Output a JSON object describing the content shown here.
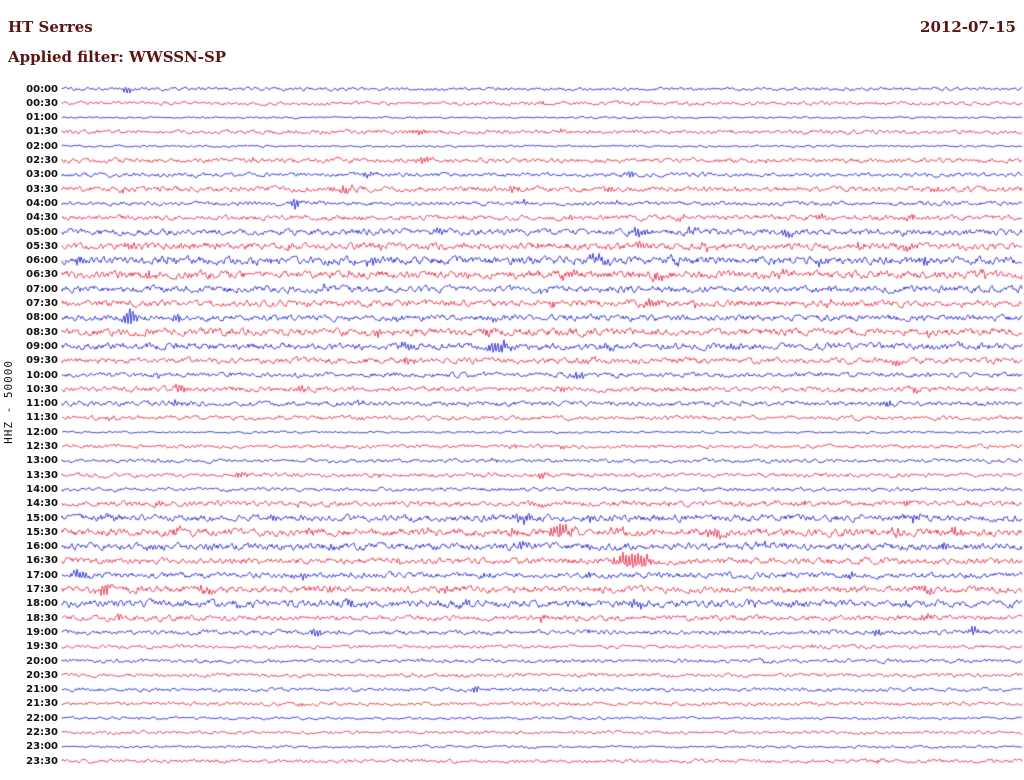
{
  "header": {
    "station": "HT Serres",
    "filter_label": "Applied filter: WWSSN-SP",
    "date": "2012-07-15"
  },
  "axis": {
    "ylabel": "HHZ - 50000"
  },
  "chart_data": {
    "type": "line",
    "title": "HT Serres",
    "subtitle": "Applied filter: WWSSN-SP",
    "date": "2012-07-15",
    "ylabel": "HHZ - 50000",
    "row_interval_minutes": 30,
    "legend_position": "none",
    "grid": false,
    "x_axis": "time of day, one trace row per 30 minutes",
    "series_description": "48 helicorder trace rows; a = relative background noise amplitude (px), e = event bursts as [position fraction 0-1, amplitude px, envelope width px]",
    "trace_colors": {
      "b": "#1616cc",
      "r": "#e3203c"
    },
    "rows": [
      {
        "t": "00:00",
        "c": "b",
        "a": 0.8,
        "e": [
          [
            0.068,
            3.5,
            4
          ]
        ]
      },
      {
        "t": "00:30",
        "c": "r",
        "a": 0.9,
        "e": [
          [
            0.5,
            1.5,
            3
          ]
        ]
      },
      {
        "t": "01:00",
        "c": "b",
        "a": 0.45,
        "e": []
      },
      {
        "t": "01:30",
        "c": "r",
        "a": 1.0,
        "e": [
          [
            0.373,
            4,
            5
          ],
          [
            0.52,
            2,
            3
          ]
        ]
      },
      {
        "t": "02:00",
        "c": "b",
        "a": 0.5,
        "e": []
      },
      {
        "t": "02:30",
        "c": "r",
        "a": 1.1,
        "e": [
          [
            0.378,
            4.5,
            5
          ],
          [
            0.2,
            2,
            3
          ],
          [
            0.73,
            2.5,
            3
          ]
        ]
      },
      {
        "t": "03:00",
        "c": "b",
        "a": 1.0,
        "e": [
          [
            0.32,
            3.5,
            4
          ],
          [
            0.59,
            3,
            4
          ],
          [
            0.8,
            2,
            3
          ]
        ]
      },
      {
        "t": "03:30",
        "c": "r",
        "a": 1.3,
        "e": [
          [
            0.066,
            3.5,
            4
          ],
          [
            0.295,
            4.5,
            6
          ],
          [
            0.47,
            3.5,
            4
          ],
          [
            0.57,
            3,
            4
          ],
          [
            0.91,
            3,
            4
          ]
        ]
      },
      {
        "t": "04:00",
        "c": "b",
        "a": 1.0,
        "e": [
          [
            0.243,
            8,
            3
          ],
          [
            0.48,
            2.5,
            3
          ],
          [
            0.58,
            2,
            3
          ]
        ]
      },
      {
        "t": "04:30",
        "c": "r",
        "a": 1.2,
        "e": [
          [
            0.42,
            2.5,
            3
          ],
          [
            0.53,
            3,
            4
          ],
          [
            0.645,
            3,
            4
          ],
          [
            0.79,
            2.5,
            3
          ],
          [
            0.885,
            3.5,
            4
          ]
        ]
      },
      {
        "t": "05:00",
        "c": "b",
        "a": 1.5,
        "e": [
          [
            0.39,
            3,
            4
          ],
          [
            0.6,
            4.5,
            6
          ],
          [
            0.655,
            4,
            5
          ],
          [
            0.755,
            4.5,
            5
          ],
          [
            0.88,
            3,
            4
          ]
        ]
      },
      {
        "t": "05:30",
        "c": "r",
        "a": 1.7,
        "e": [
          [
            0.07,
            3,
            4
          ],
          [
            0.24,
            3,
            4
          ],
          [
            0.33,
            3,
            4
          ],
          [
            0.5,
            3,
            4
          ],
          [
            0.6,
            3.5,
            4
          ],
          [
            0.67,
            3,
            4
          ],
          [
            0.83,
            3,
            4
          ],
          [
            0.878,
            4,
            5
          ]
        ]
      },
      {
        "t": "06:00",
        "c": "b",
        "a": 1.9,
        "e": [
          [
            0.02,
            4,
            5
          ],
          [
            0.11,
            3,
            4
          ],
          [
            0.21,
            3.5,
            5
          ],
          [
            0.32,
            4,
            5
          ],
          [
            0.56,
            5,
            7
          ],
          [
            0.64,
            3.5,
            4
          ],
          [
            0.79,
            3,
            4
          ],
          [
            0.9,
            3.5,
            4
          ]
        ]
      },
      {
        "t": "06:30",
        "c": "r",
        "a": 1.9,
        "e": [
          [
            0.09,
            4,
            5
          ],
          [
            0.3,
            3,
            4
          ],
          [
            0.53,
            5,
            7
          ],
          [
            0.62,
            4,
            5
          ],
          [
            0.75,
            3,
            4
          ],
          [
            0.96,
            4,
            4
          ]
        ]
      },
      {
        "t": "07:00",
        "c": "b",
        "a": 1.6,
        "e": [
          [
            0.27,
            2.5,
            4
          ],
          [
            0.5,
            2.5,
            4
          ],
          [
            0.8,
            2.5,
            4
          ]
        ]
      },
      {
        "t": "07:30",
        "c": "r",
        "a": 1.6,
        "e": [
          [
            0.51,
            4,
            5
          ],
          [
            0.615,
            5.5,
            7
          ],
          [
            0.66,
            3,
            4
          ],
          [
            0.8,
            3,
            4
          ]
        ]
      },
      {
        "t": "08:00",
        "c": "b",
        "a": 1.5,
        "e": [
          [
            0.071,
            11,
            4
          ],
          [
            0.12,
            4,
            4
          ],
          [
            0.35,
            3,
            4
          ],
          [
            0.45,
            3,
            4
          ]
        ]
      },
      {
        "t": "08:30",
        "c": "r",
        "a": 1.8,
        "e": [
          [
            0.33,
            4,
            5
          ],
          [
            0.44,
            3.5,
            4
          ],
          [
            0.62,
            3,
            4
          ],
          [
            0.9,
            3.5,
            4
          ]
        ]
      },
      {
        "t": "09:00",
        "c": "b",
        "a": 1.6,
        "e": [
          [
            0.36,
            4.5,
            5
          ],
          [
            0.455,
            6.5,
            8
          ],
          [
            0.57,
            3.5,
            4
          ],
          [
            0.7,
            3,
            4
          ]
        ]
      },
      {
        "t": "09:30",
        "c": "r",
        "a": 1.4,
        "e": [
          [
            0.36,
            4,
            5
          ],
          [
            0.55,
            3,
            4
          ],
          [
            0.87,
            3.5,
            4
          ]
        ]
      },
      {
        "t": "10:00",
        "c": "b",
        "a": 1.2,
        "e": [
          [
            0.1,
            2.5,
            3
          ],
          [
            0.54,
            4,
            5
          ]
        ]
      },
      {
        "t": "10:30",
        "c": "r",
        "a": 1.3,
        "e": [
          [
            0.123,
            4.5,
            5
          ],
          [
            0.25,
            3.5,
            4
          ],
          [
            0.52,
            3,
            4
          ],
          [
            0.89,
            3.5,
            4
          ]
        ]
      },
      {
        "t": "11:00",
        "c": "b",
        "a": 1.2,
        "e": [
          [
            0.117,
            4,
            4
          ],
          [
            0.31,
            2.5,
            3
          ],
          [
            0.86,
            3.5,
            4
          ]
        ]
      },
      {
        "t": "11:30",
        "c": "r",
        "a": 1.0,
        "e": [
          [
            0.05,
            2,
            3
          ],
          [
            0.31,
            2,
            3
          ]
        ]
      },
      {
        "t": "12:00",
        "c": "b",
        "a": 0.5,
        "e": []
      },
      {
        "t": "12:30",
        "c": "r",
        "a": 0.9,
        "e": [
          [
            0.47,
            2,
            3
          ],
          [
            0.52,
            2,
            3
          ]
        ]
      },
      {
        "t": "13:00",
        "c": "b",
        "a": 0.9,
        "e": [
          [
            0.45,
            2,
            3
          ]
        ]
      },
      {
        "t": "13:30",
        "c": "r",
        "a": 1.0,
        "e": [
          [
            0.185,
            4,
            5
          ],
          [
            0.33,
            2.5,
            3
          ],
          [
            0.5,
            3.5,
            4
          ]
        ]
      },
      {
        "t": "14:00",
        "c": "b",
        "a": 0.9,
        "e": [
          [
            0.67,
            2,
            3
          ]
        ]
      },
      {
        "t": "14:30",
        "c": "r",
        "a": 1.3,
        "e": [
          [
            0.1,
            2.5,
            3
          ],
          [
            0.25,
            2.5,
            3
          ],
          [
            0.5,
            2.5,
            3
          ],
          [
            0.63,
            2.5,
            3
          ],
          [
            0.77,
            3,
            4
          ],
          [
            0.88,
            2.5,
            3
          ]
        ]
      },
      {
        "t": "15:00",
        "c": "b",
        "a": 1.6,
        "e": [
          [
            0.05,
            3.5,
            4
          ],
          [
            0.22,
            3,
            4
          ],
          [
            0.48,
            5,
            6
          ],
          [
            0.55,
            3.5,
            4
          ],
          [
            0.62,
            3.5,
            4
          ],
          [
            0.89,
            4.5,
            5
          ]
        ]
      },
      {
        "t": "15:30",
        "c": "r",
        "a": 1.8,
        "e": [
          [
            0.12,
            3.5,
            4
          ],
          [
            0.26,
            3,
            4
          ],
          [
            0.38,
            3,
            4
          ],
          [
            0.47,
            3.5,
            4
          ],
          [
            0.52,
            8,
            9
          ],
          [
            0.58,
            4,
            5
          ],
          [
            0.68,
            5,
            6
          ],
          [
            0.87,
            3.5,
            4
          ],
          [
            0.93,
            4,
            5
          ]
        ]
      },
      {
        "t": "16:00",
        "c": "b",
        "a": 1.7,
        "e": [
          [
            0.09,
            3.5,
            4
          ],
          [
            0.28,
            3,
            4
          ],
          [
            0.48,
            4.5,
            5
          ],
          [
            0.73,
            4.5,
            5
          ],
          [
            0.92,
            4.5,
            5
          ]
        ]
      },
      {
        "t": "16:30",
        "c": "r",
        "a": 1.5,
        "e": [
          [
            0.35,
            3,
            4
          ],
          [
            0.595,
            10,
            13
          ],
          [
            0.8,
            3,
            4
          ]
        ]
      },
      {
        "t": "17:00",
        "c": "b",
        "a": 1.4,
        "e": [
          [
            0.02,
            5.5,
            7
          ],
          [
            0.25,
            3,
            4
          ],
          [
            0.44,
            3,
            4
          ],
          [
            0.55,
            3,
            4
          ],
          [
            0.82,
            3.5,
            4
          ]
        ]
      },
      {
        "t": "17:30",
        "c": "r",
        "a": 1.7,
        "e": [
          [
            0.045,
            6,
            6
          ],
          [
            0.15,
            4.5,
            5
          ],
          [
            0.28,
            3.5,
            4
          ],
          [
            0.4,
            3,
            4
          ],
          [
            0.9,
            3.5,
            4
          ]
        ]
      },
      {
        "t": "18:00",
        "c": "b",
        "a": 1.8,
        "e": [
          [
            0.18,
            3,
            4
          ],
          [
            0.3,
            3,
            4
          ],
          [
            0.42,
            3,
            4
          ],
          [
            0.6,
            4.5,
            5
          ],
          [
            0.72,
            3,
            4
          ],
          [
            0.88,
            4.5,
            5
          ]
        ]
      },
      {
        "t": "18:30",
        "c": "r",
        "a": 1.3,
        "e": [
          [
            0.06,
            2.5,
            3
          ],
          [
            0.5,
            3.5,
            4
          ],
          [
            0.9,
            4,
            5
          ]
        ]
      },
      {
        "t": "19:00",
        "c": "b",
        "a": 1.1,
        "e": [
          [
            0.265,
            4.5,
            4
          ],
          [
            0.55,
            2.5,
            3
          ],
          [
            0.85,
            4.5,
            4
          ],
          [
            0.95,
            4.5,
            4
          ]
        ]
      },
      {
        "t": "19:30",
        "c": "r",
        "a": 0.9,
        "e": [
          [
            0.78,
            2,
            3
          ]
        ]
      },
      {
        "t": "20:00",
        "c": "b",
        "a": 0.9,
        "e": [
          [
            0.73,
            2,
            3
          ],
          [
            0.83,
            2,
            3
          ]
        ]
      },
      {
        "t": "20:30",
        "c": "r",
        "a": 0.9,
        "e": []
      },
      {
        "t": "21:00",
        "c": "b",
        "a": 0.9,
        "e": [
          [
            0.43,
            4,
            4
          ]
        ]
      },
      {
        "t": "21:30",
        "c": "r",
        "a": 0.9,
        "e": [
          [
            0.25,
            2,
            3
          ]
        ]
      },
      {
        "t": "22:00",
        "c": "b",
        "a": 0.6,
        "e": [
          [
            0.08,
            1.5,
            2
          ]
        ]
      },
      {
        "t": "22:30",
        "c": "r",
        "a": 0.8,
        "e": []
      },
      {
        "t": "23:00",
        "c": "b",
        "a": 0.6,
        "e": []
      },
      {
        "t": "23:30",
        "c": "r",
        "a": 0.9,
        "e": [
          [
            0.85,
            2,
            3
          ]
        ]
      }
    ]
  }
}
